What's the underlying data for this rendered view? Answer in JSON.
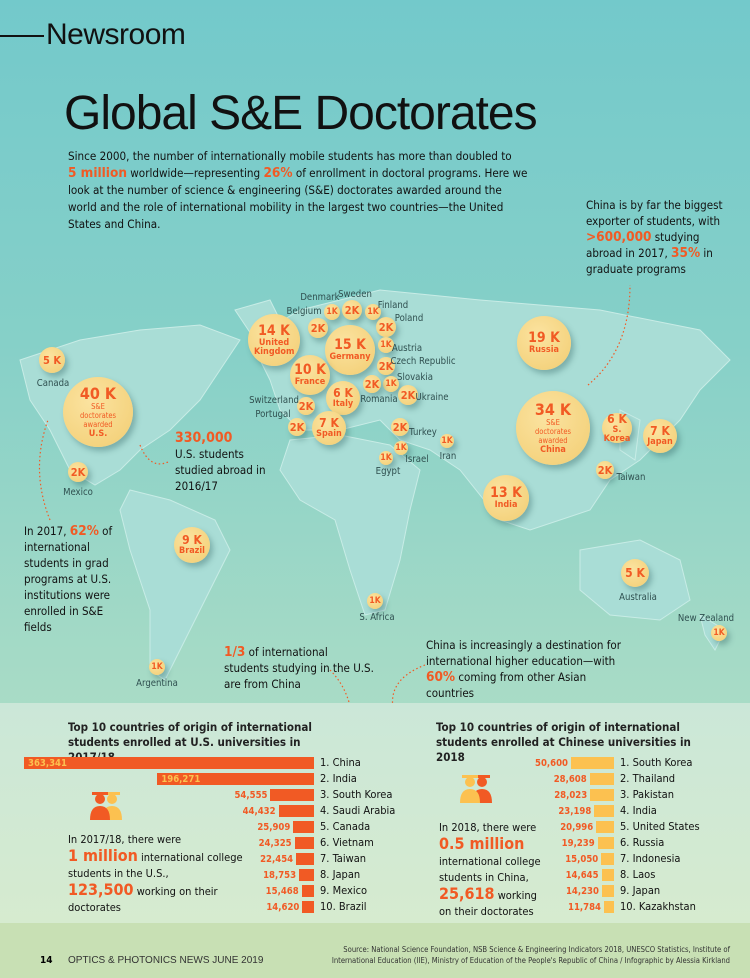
{
  "header": {
    "section": "Newsroom",
    "title": "Global S&E Doctorates"
  },
  "intro": {
    "p1": "Since 2000, the number of internationally mobile students has more than doubled to",
    "h1": "5 million",
    "p2": " worldwide—representing ",
    "h2": "26%",
    "p3": " of enrollment in doctoral programs. Here we look at the number of science & engineering (S&E) doctorates awarded around the world and the role of international mobility in the largest two countries—the United States and China."
  },
  "notes": {
    "china_exporter": {
      "t1": "China is by far the biggest exporter of students, with ",
      "h1": ">600,000",
      "t2": " studying abroad in 2017, ",
      "h2": "35%",
      "t3": " in graduate programs"
    },
    "us_abroad": {
      "h": "330,000",
      "t": "U.S. students studied abroad in 2016/17"
    },
    "us_se": {
      "t1": "In 2017, ",
      "h": "62%",
      "t2": " of international students in grad programs at U.S. institutions were enrolled in S&E fields"
    },
    "one_third": {
      "h": "1/3",
      "t": " of international students studying in the U.S. are from China"
    },
    "china_destination": {
      "t1": "China is increasingly a destination for international higher education—with ",
      "h": "60%",
      "t2": " coming from other Asian countries"
    }
  },
  "map_bubbles": [
    {
      "value": "5 K",
      "country": "Canada"
    },
    {
      "value": "40 K",
      "sub": "S&E doctorates awarded",
      "country": "U.S."
    },
    {
      "value": "2K",
      "country": "Mexico"
    },
    {
      "value": "9 K",
      "country": "Brazil"
    },
    {
      "value": "1K",
      "country": "Argentina"
    },
    {
      "value": "14 K",
      "country": "United Kingdom"
    },
    {
      "value": "2K",
      "country": "Belgium"
    },
    {
      "value": "1K",
      "country": "Denmark"
    },
    {
      "value": "2K",
      "country": "Sweden"
    },
    {
      "value": "1K",
      "country": "Finland"
    },
    {
      "value": "2K",
      "country": "Poland"
    },
    {
      "value": "15 K",
      "country": "Germany"
    },
    {
      "value": "1K",
      "country": "Austria"
    },
    {
      "value": "2K",
      "country": "Czech Republic"
    },
    {
      "value": "1K",
      "country": "Slovakia"
    },
    {
      "value": "2K",
      "country": "Romania"
    },
    {
      "value": "2K",
      "country": "Ukraine"
    },
    {
      "value": "10 K",
      "country": "France"
    },
    {
      "value": "6 K",
      "country": "Italy"
    },
    {
      "value": "2K",
      "country": "Switzerland"
    },
    {
      "value": "2K",
      "country": "Portugal"
    },
    {
      "value": "7 K",
      "country": "Spain"
    },
    {
      "value": "2K",
      "country": "Turkey"
    },
    {
      "value": "1K",
      "country": "Israel"
    },
    {
      "value": "1K",
      "country": "Egypt"
    },
    {
      "value": "1K",
      "country": "Iran"
    },
    {
      "value": "19 K",
      "country": "Russia"
    },
    {
      "value": "34 K",
      "sub": "S&E doctorates awarded",
      "country": "China"
    },
    {
      "value": "6 K",
      "country": "S. Korea"
    },
    {
      "value": "7 K",
      "country": "Japan"
    },
    {
      "value": "2K",
      "country": "Taiwan"
    },
    {
      "value": "13 K",
      "country": "India"
    },
    {
      "value": "5 K",
      "country": "Australia"
    },
    {
      "value": "1K",
      "country": "New Zealand"
    },
    {
      "value": "1K",
      "country": "S. Africa"
    }
  ],
  "chart_data": [
    {
      "type": "bar",
      "title": "Top 10 countries of origin of international students enrolled at U.S. universities in 2017/18",
      "categories": [
        "1. China",
        "2. India",
        "3. South Korea",
        "4. Saudi Arabia",
        "5. Canada",
        "6. Vietnam",
        "7. Taiwan",
        "8. Japan",
        "9. Mexico",
        "10. Brazil"
      ],
      "values": [
        363341,
        196271,
        54555,
        44432,
        25909,
        24325,
        22454,
        18753,
        15468,
        14620
      ],
      "labels": [
        "363,341",
        "196,271",
        "54,555",
        "44,432",
        "25,909",
        "24,325",
        "22,454",
        "18,753",
        "15,468",
        "14,620"
      ],
      "color": "#f15a24"
    },
    {
      "type": "bar",
      "title": "Top 10 countries of origin of international students enrolled at Chinese universities in 2018",
      "categories": [
        "1. South Korea",
        "2. Thailand",
        "3. Pakistan",
        "4. India",
        "5. United States",
        "6. Russia",
        "7. Indonesia",
        "8. Laos",
        "9. Japan",
        "10. Kazakhstan"
      ],
      "values": [
        50600,
        28608,
        28023,
        23198,
        20996,
        19239,
        15050,
        14645,
        14230,
        11784
      ],
      "labels": [
        "50,600",
        "28,608",
        "28,023",
        "23,198",
        "20,996",
        "19,239",
        "15,050",
        "14,645",
        "14,230",
        "11,784"
      ],
      "color": "#fcc150"
    }
  ],
  "us_stat": {
    "t1": "In 2017/18, there were",
    "h1": "1 million",
    "t2": " international college students in the U.S.,",
    "h2": "123,500",
    "t3": " working on their doctorates"
  },
  "cn_stat": {
    "t1": "In 2018, there were ",
    "h1": "0.5 million",
    "t2": " international college students in China,",
    "h2": "25,618",
    "t3": " working on their doctorates"
  },
  "footer": {
    "page": "14",
    "magazine": "OPTICS & PHOTONICS NEWS  JUNE 2019",
    "source": "Source: National Science Foundation, NSB Science & Engineering Indicators 2018, UNESCO Statistics, Institute of International Education (IIE), Ministry of Education of the People's Republic of China / Infographic by Alessia Kirkland"
  },
  "colors": {
    "accent": "#f15a24",
    "bubble": "#f2cd72",
    "china_bar": "#fcc150"
  }
}
